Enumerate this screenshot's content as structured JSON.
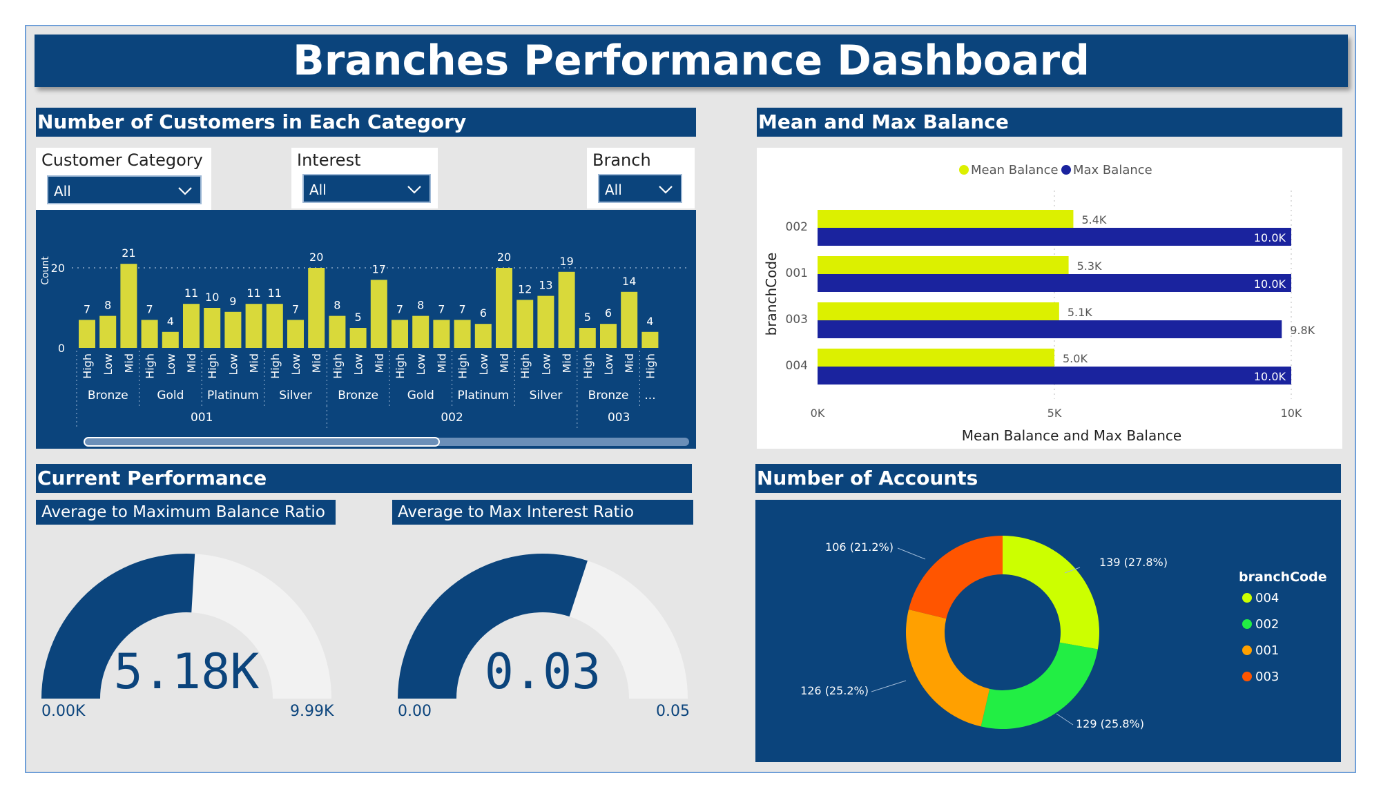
{
  "title": "Branches Performance Dashboard",
  "colors": {
    "navy": "#0b447c",
    "bar_yellow": "#d9d93a",
    "mean_yellow": "#dcf000",
    "max_blue": "#1a239e",
    "gauge_track": "#f2f2f2"
  },
  "customers": {
    "title": "Number of Customers in Each Category",
    "filters": [
      {
        "label": "Customer Category",
        "value": "All"
      },
      {
        "label": "Interest",
        "value": "All"
      },
      {
        "label": "Branch",
        "value": "All"
      }
    ]
  },
  "balance": {
    "title": "Mean and Max Balance"
  },
  "performance": {
    "title": "Current Performance",
    "gauge1": {
      "title": "Average to Maximum Balance Ratio",
      "value": 5180,
      "max": 9990,
      "value_label": "5.18K",
      "min_label": "0.00K",
      "max_label": "9.99K"
    },
    "gauge2": {
      "title": "Average to Max Interest Ratio",
      "value": 0.03,
      "max": 0.05,
      "value_label": "0.03",
      "min_label": "0.00",
      "max_label": "0.05"
    }
  },
  "accounts": {
    "title": "Number of Accounts"
  },
  "chart_data": [
    {
      "type": "bar",
      "ylabel": "Count",
      "yticks": [
        0,
        20
      ],
      "ylim": [
        0,
        23
      ],
      "grid": true,
      "categories": [
        "High",
        "Low",
        "Mid",
        "High",
        "Low",
        "Mid",
        "High",
        "Low",
        "Mid",
        "High",
        "Low",
        "Mid",
        "High",
        "Low",
        "Mid",
        "High",
        "Low",
        "Mid",
        "High",
        "Low",
        "Mid",
        "High",
        "Low",
        "Mid",
        "High",
        "Low",
        "Mid",
        "High"
      ],
      "values": [
        7,
        8,
        21,
        7,
        4,
        11,
        10,
        9,
        11,
        11,
        7,
        20,
        8,
        5,
        17,
        7,
        8,
        7,
        7,
        6,
        20,
        12,
        13,
        19,
        5,
        6,
        14,
        4
      ],
      "groups": [
        {
          "label": "Bronze",
          "start": 0,
          "count": 3
        },
        {
          "label": "Gold",
          "start": 3,
          "count": 3
        },
        {
          "label": "Platinum",
          "start": 6,
          "count": 3
        },
        {
          "label": "Silver",
          "start": 9,
          "count": 3
        },
        {
          "label": "Bronze",
          "start": 12,
          "count": 3
        },
        {
          "label": "Gold",
          "start": 15,
          "count": 3
        },
        {
          "label": "Platinum",
          "start": 18,
          "count": 3
        },
        {
          "label": "Silver",
          "start": 21,
          "count": 3
        },
        {
          "label": "Bronze",
          "start": 24,
          "count": 3
        },
        {
          "label": "...",
          "start": 27,
          "count": 1
        }
      ],
      "supergroups": [
        {
          "label": "001",
          "start": 0,
          "count": 12
        },
        {
          "label": "002",
          "start": 12,
          "count": 12
        },
        {
          "label": "003",
          "start": 24,
          "count": 4
        }
      ]
    },
    {
      "type": "bar",
      "orientation": "horizontal",
      "categories": [
        "002",
        "001",
        "003",
        "004"
      ],
      "series": [
        {
          "name": "Mean Balance",
          "values": [
            5400,
            5300,
            5100,
            5000
          ],
          "labels": [
            "5.4K",
            "5.3K",
            "5.1K",
            "5.0K"
          ]
        },
        {
          "name": "Max Balance",
          "values": [
            10000,
            10000,
            9800,
            10000
          ],
          "labels": [
            "10.0K",
            "10.0K",
            "9.8K",
            "10.0K"
          ]
        }
      ],
      "xlabel": "Mean Balance and Max Balance",
      "ylabel": "branchCode",
      "xlim": [
        0,
        10000
      ],
      "xticks": [
        0,
        5000,
        10000
      ],
      "xtick_labels": [
        "0K",
        "5K",
        "10K"
      ],
      "legend": "top-center",
      "grid": true
    },
    {
      "type": "pie",
      "donut": true,
      "legend_title": "branchCode",
      "legend": "right",
      "slices": [
        {
          "label": "004",
          "value": 139,
          "text": "139 (27.8%)",
          "color": "#ccff00"
        },
        {
          "label": "002",
          "value": 129,
          "text": "129 (25.8%)",
          "color": "#22ee44"
        },
        {
          "label": "001",
          "value": 126,
          "text": "126 (25.2%)",
          "color": "#ffa000"
        },
        {
          "label": "003",
          "value": 106,
          "text": "106 (21.2%)",
          "color": "#ff5500"
        }
      ]
    }
  ]
}
